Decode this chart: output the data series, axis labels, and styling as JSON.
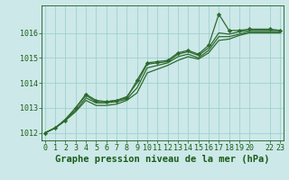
{
  "title": "Graphe pression niveau de la mer (hPa)",
  "bg_color": "#cce8e8",
  "grid_color": "#99cccc",
  "line_color": "#2d6a2d",
  "marker_color": "#2d6a2d",
  "xlim": [
    -0.3,
    23.3
  ],
  "ylim": [
    1011.7,
    1017.1
  ],
  "yticks": [
    1012,
    1013,
    1014,
    1015,
    1016
  ],
  "xtick_positions": [
    0,
    1,
    2,
    3,
    4,
    5,
    6,
    7,
    8,
    9,
    10,
    11,
    12,
    13,
    14,
    15,
    16,
    17,
    18,
    19,
    20,
    22,
    23
  ],
  "xtick_labels": [
    "0",
    "1",
    "2",
    "3",
    "4",
    "5",
    "6",
    "7",
    "8",
    "9",
    "10",
    "11",
    "12",
    "13",
    "14",
    "15",
    "16",
    "17",
    "18",
    "19",
    "20",
    "22",
    "23"
  ],
  "x_values": [
    0,
    1,
    2,
    3,
    4,
    5,
    6,
    7,
    8,
    9,
    10,
    11,
    12,
    13,
    14,
    15,
    16,
    17,
    18,
    19,
    20,
    22,
    23
  ],
  "series": [
    [
      1012.0,
      1012.2,
      1012.5,
      1013.0,
      1013.55,
      1013.3,
      1013.25,
      1013.3,
      1013.4,
      1014.1,
      1014.8,
      1014.85,
      1014.9,
      1015.2,
      1015.3,
      1015.15,
      1015.5,
      1016.75,
      1016.1,
      1016.1,
      1016.15,
      1016.15,
      1016.1
    ],
    [
      1012.0,
      1012.2,
      1012.55,
      1013.0,
      1013.5,
      1013.25,
      1013.25,
      1013.3,
      1013.45,
      1014.0,
      1014.75,
      1014.8,
      1014.85,
      1015.15,
      1015.25,
      1015.1,
      1015.4,
      1016.0,
      1015.95,
      1016.05,
      1016.1,
      1016.1,
      1016.1
    ],
    [
      1012.0,
      1012.2,
      1012.5,
      1012.9,
      1013.4,
      1013.2,
      1013.2,
      1013.25,
      1013.35,
      1013.8,
      1014.6,
      1014.7,
      1014.8,
      1015.05,
      1015.15,
      1015.0,
      1015.3,
      1015.85,
      1015.85,
      1015.95,
      1016.05,
      1016.05,
      1016.05
    ],
    [
      1012.0,
      1012.2,
      1012.5,
      1012.85,
      1013.3,
      1013.1,
      1013.1,
      1013.15,
      1013.3,
      1013.6,
      1014.4,
      1014.55,
      1014.7,
      1014.9,
      1015.05,
      1014.95,
      1015.2,
      1015.7,
      1015.75,
      1015.9,
      1016.0,
      1016.0,
      1016.0
    ]
  ],
  "marker_series": 0,
  "title_fontsize": 7.5,
  "tick_fontsize": 6.0,
  "tick_color": "#1a5c1a",
  "axis_color": "#1a5c1a",
  "label_color": "#1a5c1a"
}
